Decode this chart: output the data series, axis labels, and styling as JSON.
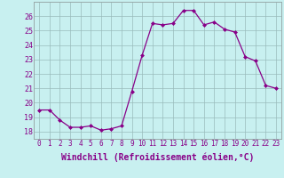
{
  "hours": [
    0,
    1,
    2,
    3,
    4,
    5,
    6,
    7,
    8,
    9,
    10,
    11,
    12,
    13,
    14,
    15,
    16,
    17,
    18,
    19,
    20,
    21,
    22,
    23
  ],
  "values": [
    19.5,
    19.5,
    18.8,
    18.3,
    18.3,
    18.4,
    18.1,
    18.2,
    18.4,
    20.8,
    23.3,
    25.5,
    25.4,
    25.5,
    26.4,
    26.4,
    25.4,
    25.6,
    25.1,
    24.9,
    23.2,
    22.9,
    21.2,
    21.0
  ],
  "xlim": [
    -0.5,
    23.5
  ],
  "ylim": [
    17.5,
    27.0
  ],
  "yticks": [
    18,
    19,
    20,
    21,
    22,
    23,
    24,
    25,
    26
  ],
  "xtick_labels": [
    "0",
    "1",
    "2",
    "3",
    "4",
    "5",
    "6",
    "7",
    "8",
    "9",
    "10",
    "11",
    "12",
    "13",
    "14",
    "15",
    "16",
    "17",
    "18",
    "19",
    "20",
    "21",
    "22",
    "23"
  ],
  "xlabel": "Windchill (Refroidissement éolien,°C)",
  "line_color": "#880088",
  "marker": "D",
  "marker_size": 2.0,
  "bg_color": "#c8f0f0",
  "grid_color": "#99bbbb",
  "xlabel_fontsize": 7.0,
  "tick_fontsize": 5.5,
  "ytick_fontsize": 6.0
}
